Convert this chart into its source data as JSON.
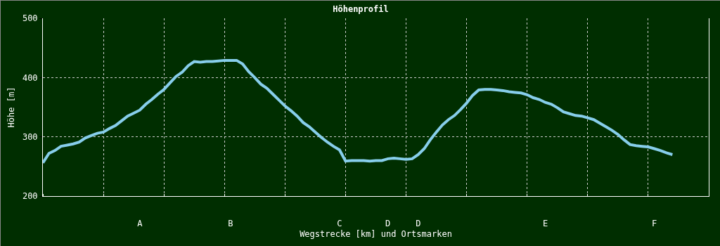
{
  "chart_data": {
    "type": "line",
    "title": "Höhenprofil",
    "xlabel": "Wegstrecke [km] und Ortsmarken",
    "ylabel": "Höhe [m]",
    "categories": [
      null,
      null,
      null,
      null,
      null,
      null,
      null,
      null,
      null,
      null,
      null,
      null,
      null,
      null,
      null,
      null,
      "A",
      null,
      null,
      null,
      null,
      null,
      null,
      null,
      null,
      null,
      null,
      null,
      null,
      null,
      null,
      "B",
      null,
      null,
      null,
      null,
      null,
      null,
      null,
      null,
      null,
      null,
      null,
      null,
      null,
      null,
      null,
      null,
      null,
      "C",
      null,
      null,
      null,
      null,
      null,
      null,
      null,
      "D",
      null,
      null,
      null,
      null,
      "D",
      null,
      null,
      null,
      null,
      null,
      null,
      null,
      null,
      null,
      null,
      null,
      null,
      null,
      null,
      null,
      null,
      null,
      null,
      null,
      null,
      "E",
      null,
      null,
      null,
      null,
      null,
      null,
      null,
      null,
      null,
      null,
      null,
      null,
      null,
      null,
      null,
      null,
      null,
      "F",
      null,
      null,
      null,
      null,
      null,
      null,
      null,
      null,
      null
    ],
    "values": [
      256,
      272,
      277,
      284,
      286,
      288,
      291,
      298,
      302,
      306,
      308,
      314,
      319,
      327,
      335,
      340,
      345,
      355,
      363,
      372,
      380,
      391,
      402,
      409,
      420,
      427,
      426,
      427,
      427,
      428,
      429,
      429,
      429,
      423,
      410,
      400,
      389,
      382,
      372,
      362,
      352,
      344,
      335,
      324,
      317,
      308,
      299,
      291,
      284,
      278,
      259,
      260,
      260,
      260,
      259,
      260,
      260,
      263,
      264,
      263,
      262,
      263,
      270,
      280,
      295,
      308,
      320,
      329,
      336,
      346,
      357,
      370,
      379,
      380,
      380,
      379,
      378,
      376,
      375,
      374,
      371,
      366,
      363,
      358,
      355,
      349,
      342,
      339,
      336,
      335,
      332,
      329,
      323,
      317,
      311,
      304,
      295,
      287,
      285,
      284,
      283,
      280,
      277,
      273,
      270,
      null,
      null,
      null,
      null,
      null,
      null
    ],
    "color": "#87ceeb",
    "ylim": [
      200,
      500
    ],
    "yticks": [
      200,
      300,
      400,
      500
    ],
    "grid": true,
    "marker": "none",
    "line_style": "solid"
  }
}
